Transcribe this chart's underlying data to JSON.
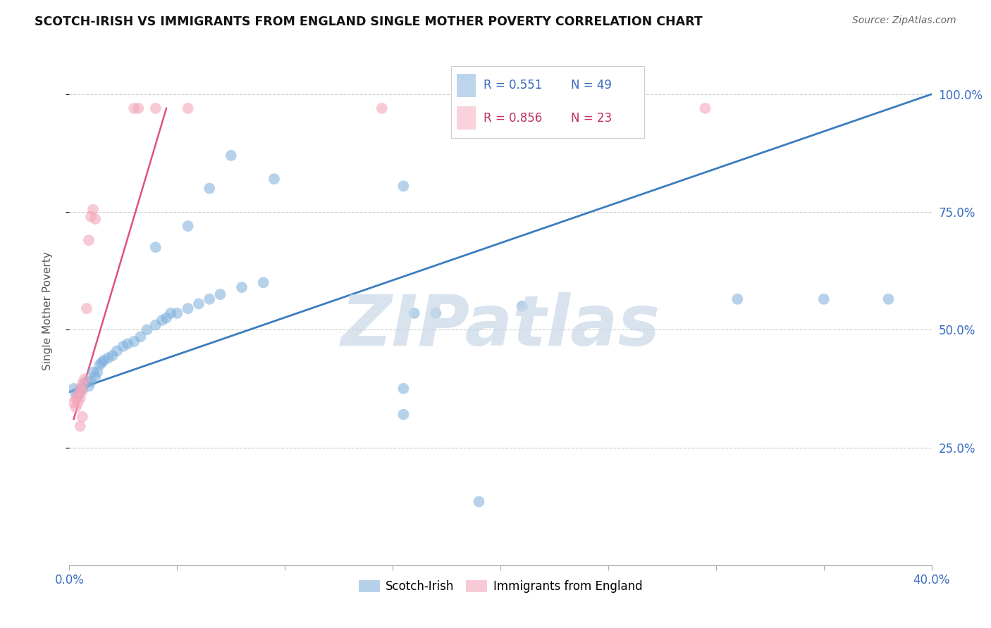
{
  "title": "SCOTCH-IRISH VS IMMIGRANTS FROM ENGLAND SINGLE MOTHER POVERTY CORRELATION CHART",
  "source": "Source: ZipAtlas.com",
  "ylabel": "Single Mother Poverty",
  "legend_blue": {
    "R": "0.551",
    "N": "49",
    "label": "Scotch-Irish"
  },
  "legend_pink": {
    "R": "0.856",
    "N": "23",
    "label": "Immigrants from England"
  },
  "blue_scatter": [
    [
      0.002,
      0.375
    ],
    [
      0.003,
      0.365
    ],
    [
      0.004,
      0.36
    ],
    [
      0.005,
      0.37
    ],
    [
      0.006,
      0.375
    ],
    [
      0.007,
      0.385
    ],
    [
      0.008,
      0.39
    ],
    [
      0.009,
      0.38
    ],
    [
      0.01,
      0.39
    ],
    [
      0.011,
      0.41
    ],
    [
      0.012,
      0.4
    ],
    [
      0.013,
      0.41
    ],
    [
      0.014,
      0.425
    ],
    [
      0.015,
      0.43
    ],
    [
      0.016,
      0.435
    ],
    [
      0.018,
      0.44
    ],
    [
      0.02,
      0.445
    ],
    [
      0.022,
      0.455
    ],
    [
      0.025,
      0.465
    ],
    [
      0.027,
      0.47
    ],
    [
      0.03,
      0.475
    ],
    [
      0.033,
      0.485
    ],
    [
      0.036,
      0.5
    ],
    [
      0.04,
      0.51
    ],
    [
      0.043,
      0.52
    ],
    [
      0.045,
      0.525
    ],
    [
      0.047,
      0.535
    ],
    [
      0.05,
      0.535
    ],
    [
      0.055,
      0.545
    ],
    [
      0.06,
      0.555
    ],
    [
      0.065,
      0.565
    ],
    [
      0.07,
      0.575
    ],
    [
      0.08,
      0.59
    ],
    [
      0.09,
      0.6
    ],
    [
      0.04,
      0.675
    ],
    [
      0.055,
      0.72
    ],
    [
      0.065,
      0.8
    ],
    [
      0.075,
      0.87
    ],
    [
      0.095,
      0.82
    ],
    [
      0.155,
      0.805
    ],
    [
      0.16,
      0.535
    ],
    [
      0.17,
      0.535
    ],
    [
      0.155,
      0.375
    ],
    [
      0.155,
      0.32
    ],
    [
      0.19,
      0.135
    ],
    [
      0.21,
      0.55
    ],
    [
      0.31,
      0.565
    ],
    [
      0.35,
      0.565
    ],
    [
      0.38,
      0.565
    ]
  ],
  "pink_scatter": [
    [
      0.002,
      0.345
    ],
    [
      0.003,
      0.355
    ],
    [
      0.003,
      0.335
    ],
    [
      0.004,
      0.36
    ],
    [
      0.004,
      0.345
    ],
    [
      0.005,
      0.375
    ],
    [
      0.005,
      0.355
    ],
    [
      0.006,
      0.385
    ],
    [
      0.006,
      0.37
    ],
    [
      0.007,
      0.395
    ],
    [
      0.008,
      0.545
    ],
    [
      0.009,
      0.69
    ],
    [
      0.01,
      0.74
    ],
    [
      0.011,
      0.755
    ],
    [
      0.012,
      0.735
    ],
    [
      0.006,
      0.315
    ],
    [
      0.03,
      0.97
    ],
    [
      0.032,
      0.97
    ],
    [
      0.04,
      0.97
    ],
    [
      0.055,
      0.97
    ],
    [
      0.145,
      0.97
    ],
    [
      0.295,
      0.97
    ],
    [
      0.005,
      0.295
    ]
  ],
  "blue_line_x": [
    0.0,
    0.4
  ],
  "blue_line_y": [
    0.368,
    1.0
  ],
  "pink_line_x": [
    0.002,
    0.045
  ],
  "pink_line_y": [
    0.31,
    0.97
  ],
  "xmin": 0.0,
  "xmax": 0.4,
  "ymin": 0.0,
  "ymax": 1.08,
  "yticks": [
    0.25,
    0.5,
    0.75,
    1.0
  ],
  "xtick_positions": [
    0.0,
    0.05,
    0.1,
    0.15,
    0.2,
    0.25,
    0.3,
    0.35,
    0.4
  ],
  "xtick_show_labels": [
    0,
    8
  ],
  "grid_color": "#cccccc",
  "blue_color": "#7aaddb",
  "pink_color": "#f4a7b9",
  "blue_line_color": "#3a7dbf",
  "pink_line_color": "#e05080",
  "watermark_text": "ZIPatlas",
  "watermark_color": "#c8d8e8",
  "background_color": "#ffffff"
}
